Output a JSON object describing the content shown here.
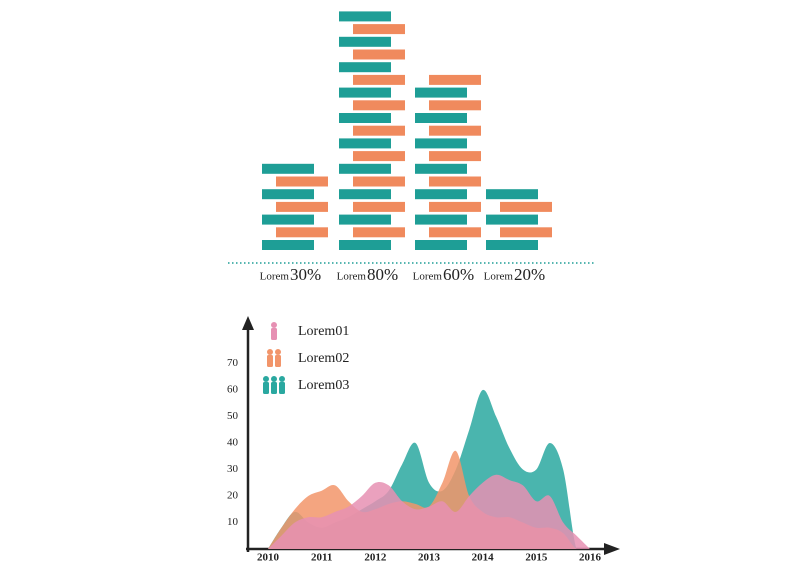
{
  "chart_data": [
    {
      "type": "brickbar",
      "categories": [
        "Lorem",
        "Lorem",
        "Lorem",
        "Lorem"
      ],
      "values": [
        30,
        80,
        60,
        20
      ],
      "value_labels": [
        "30%",
        "80%",
        "60%",
        "20%"
      ],
      "colors": [
        "#1e9e96",
        "#f08a5d"
      ]
    },
    {
      "type": "area",
      "x": [
        2010,
        2010.25,
        2010.5,
        2010.75,
        2011,
        2011.25,
        2011.5,
        2011.75,
        2012,
        2012.25,
        2012.5,
        2012.75,
        2013,
        2013.25,
        2013.5,
        2013.75,
        2014,
        2014.25,
        2014.5,
        2014.75,
        2015,
        2015.25,
        2015.5,
        2015.75,
        2016
      ],
      "series": [
        {
          "name": "Lorem01",
          "color": "#e690b3",
          "values": [
            0,
            5,
            10,
            12,
            12,
            14,
            16,
            20,
            25,
            24,
            18,
            15,
            16,
            18,
            14,
            20,
            25,
            28,
            26,
            24,
            18,
            20,
            10,
            5,
            0
          ]
        },
        {
          "name": "Lorem02",
          "color": "#f2956a",
          "values": [
            0,
            8,
            15,
            20,
            22,
            24,
            18,
            14,
            15,
            17,
            18,
            17,
            16,
            25,
            37,
            20,
            14,
            12,
            12,
            10,
            8,
            8,
            6,
            0,
            0
          ]
        },
        {
          "name": "Lorem03",
          "color": "#2aa8a0",
          "values": [
            0,
            8,
            14,
            10,
            8,
            10,
            12,
            15,
            18,
            22,
            32,
            40,
            25,
            22,
            30,
            45,
            60,
            50,
            38,
            30,
            30,
            40,
            30,
            0,
            0
          ]
        }
      ],
      "xlim": [
        2010,
        2016
      ],
      "xticks": [
        2010,
        2011,
        2012,
        2013,
        2014,
        2015,
        2016
      ],
      "ylim": [
        0,
        80
      ],
      "yticks": [
        10,
        20,
        30,
        40,
        50,
        60,
        70
      ]
    }
  ]
}
